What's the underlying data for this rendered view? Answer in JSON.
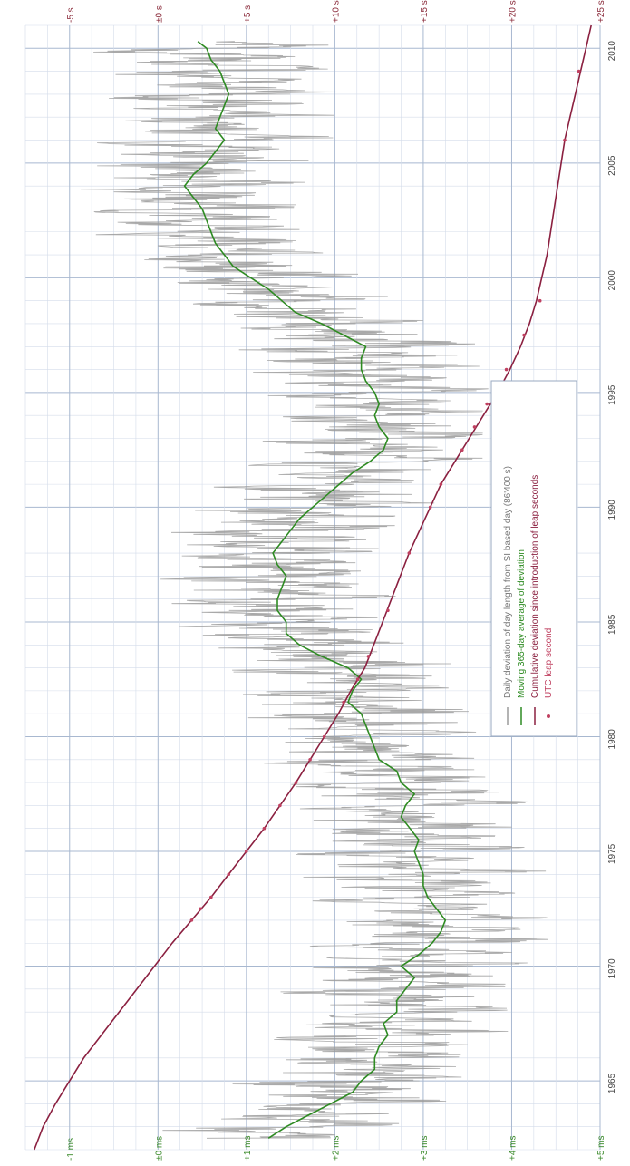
{
  "chart_data": {
    "type": "line",
    "orientation": "rotated-90",
    "grid": true,
    "x_axis": {
      "range": [
        1962,
        2011
      ],
      "ticks": [
        1965,
        1970,
        1975,
        1980,
        1985,
        1990,
        1995,
        2000,
        2005,
        2010
      ],
      "tick_labels": [
        "1965",
        "1970",
        "1975",
        "1980",
        "1985",
        "1990",
        "1995",
        "2000",
        "2005",
        "2010"
      ]
    },
    "y_left_axis": {
      "unit": "ms",
      "range": [
        -1.5,
        5
      ],
      "ticks": [
        5,
        4,
        3,
        2,
        1,
        0,
        -1
      ],
      "tick_labels": [
        "+5 ms",
        "+4 ms",
        "+3 ms",
        "+2 ms",
        "+1 ms",
        "±0 ms",
        "-1 ms"
      ]
    },
    "y_right_axis": {
      "unit": "s",
      "range": [
        -7.5,
        25
      ],
      "ticks": [
        25,
        20,
        15,
        10,
        5,
        0,
        -5
      ],
      "tick_labels": [
        "+25 s",
        "+20 s",
        "+15 s",
        "+10 s",
        "+5 s",
        "±0 s",
        "-5 s"
      ]
    },
    "legend": {
      "placement": "center-right",
      "entries": [
        {
          "label": "Daily deviation of day length from SI based day (86'400 s)",
          "color": "#9a9a9a",
          "marker": "line"
        },
        {
          "label": "Moving 365-day average of deviation",
          "color": "#2e8b22",
          "marker": "line"
        },
        {
          "label": "Cumulative deviation since introduction of leap seconds",
          "color": "#8b2040",
          "marker": "line"
        },
        {
          "label": "UTC leap second",
          "color": "#c04060",
          "marker": "dot"
        }
      ]
    },
    "series": [
      {
        "name": "Moving 365-day average of deviation",
        "axis": "ms",
        "color": "#2e8b22",
        "x": [
          1962.5,
          1963,
          1963.5,
          1964,
          1964.5,
          1965,
          1965.5,
          1966,
          1966.5,
          1967,
          1967.5,
          1968,
          1968.5,
          1969,
          1969.5,
          1970,
          1970.5,
          1971,
          1971.5,
          1972,
          1972.5,
          1973,
          1973.5,
          1974,
          1974.5,
          1975,
          1975.5,
          1976,
          1976.5,
          1977,
          1977.5,
          1978,
          1978.5,
          1979,
          1979.5,
          1980,
          1980.5,
          1981,
          1981.5,
          1982,
          1982.5,
          1983,
          1983.5,
          1984,
          1984.5,
          1985,
          1985.5,
          1986,
          1986.5,
          1987,
          1987.5,
          1988,
          1988.5,
          1989,
          1989.5,
          1990,
          1990.5,
          1991,
          1991.5,
          1992,
          1992.5,
          1993,
          1993.5,
          1994,
          1994.5,
          1995,
          1995.5,
          1996,
          1996.5,
          1997,
          1997.5,
          1998,
          1998.5,
          1999,
          1999.5,
          2000,
          2000.5,
          2001,
          2001.5,
          2002,
          2002.5,
          2003,
          2003.5,
          2004,
          2004.5,
          2005,
          2005.5,
          2006,
          2006.5,
          2007,
          2007.5,
          2008,
          2008.5,
          2009,
          2009.5,
          2010,
          2010.3
        ],
        "y": [
          1.25,
          1.45,
          1.7,
          1.95,
          2.2,
          2.3,
          2.45,
          2.45,
          2.5,
          2.6,
          2.55,
          2.7,
          2.7,
          2.8,
          2.9,
          2.75,
          2.95,
          3.1,
          3.2,
          3.25,
          3.15,
          3.05,
          3.0,
          3.0,
          2.95,
          2.9,
          2.95,
          2.85,
          2.75,
          2.8,
          2.9,
          2.75,
          2.7,
          2.5,
          2.45,
          2.4,
          2.35,
          2.3,
          2.15,
          2.2,
          2.3,
          2.15,
          1.85,
          1.6,
          1.45,
          1.45,
          1.35,
          1.35,
          1.4,
          1.45,
          1.35,
          1.3,
          1.4,
          1.5,
          1.6,
          1.75,
          1.9,
          2.05,
          2.2,
          2.4,
          2.55,
          2.6,
          2.5,
          2.45,
          2.5,
          2.45,
          2.35,
          2.3,
          2.3,
          2.35,
          2.1,
          1.85,
          1.55,
          1.4,
          1.25,
          1.05,
          0.85,
          0.75,
          0.65,
          0.6,
          0.55,
          0.5,
          0.4,
          0.3,
          0.4,
          0.55,
          0.65,
          0.75,
          0.65,
          0.7,
          0.75,
          0.8,
          0.75,
          0.7,
          0.6,
          0.55,
          0.45
        ]
      },
      {
        "name": "Cumulative deviation since introduction of leap seconds",
        "axis": "s",
        "color": "#8b2040",
        "x": [
          1962,
          1963,
          1964,
          1965,
          1966,
          1967,
          1968,
          1969,
          1970,
          1971,
          1972,
          1973,
          1974,
          1975,
          1976,
          1977,
          1978,
          1979,
          1980,
          1981,
          1982,
          1983,
          1984,
          1985,
          1986,
          1987,
          1988,
          1989,
          1990,
          1991,
          1992,
          1993,
          1994,
          1995,
          1996,
          1997,
          1998,
          1999,
          2000,
          2001,
          2002,
          2003,
          2004,
          2005,
          2006,
          2007,
          2008,
          2009,
          2010,
          2011
        ],
        "y": [
          -7.0,
          -6.5,
          -5.8,
          -5.0,
          -4.2,
          -3.2,
          -2.2,
          -1.2,
          -0.2,
          0.8,
          1.9,
          3.0,
          4.0,
          5.0,
          6.0,
          6.9,
          7.8,
          8.6,
          9.4,
          10.2,
          10.9,
          11.7,
          12.2,
          12.7,
          13.2,
          13.7,
          14.2,
          14.8,
          15.4,
          16.0,
          16.8,
          17.6,
          18.4,
          19.2,
          19.9,
          20.5,
          21.0,
          21.4,
          21.7,
          22.0,
          22.2,
          22.4,
          22.6,
          22.8,
          23.0,
          23.3,
          23.6,
          23.9,
          24.2,
          24.5
        ]
      },
      {
        "name": "UTC leap second",
        "axis": "s",
        "color": "#c04060",
        "marker": "dot",
        "x": [
          1972.0,
          1972.5,
          1973.0,
          1974.0,
          1975.0,
          1976.0,
          1977.0,
          1978.0,
          1979.0,
          1980.0,
          1981.5,
          1982.5,
          1983.5,
          1985.5,
          1988.0,
          1990.0,
          1991.0,
          1992.5,
          1993.5,
          1994.5,
          1996.0,
          1997.5,
          1999.0,
          2006.0,
          2009.0
        ],
        "y": [
          1.9,
          2.4,
          3.0,
          4.0,
          5.0,
          6.0,
          6.9,
          7.8,
          8.6,
          9.4,
          10.5,
          11.3,
          11.9,
          13.0,
          14.2,
          15.4,
          16.0,
          17.2,
          17.9,
          18.6,
          19.7,
          20.7,
          21.6,
          23.0,
          23.8
        ]
      }
    ]
  }
}
